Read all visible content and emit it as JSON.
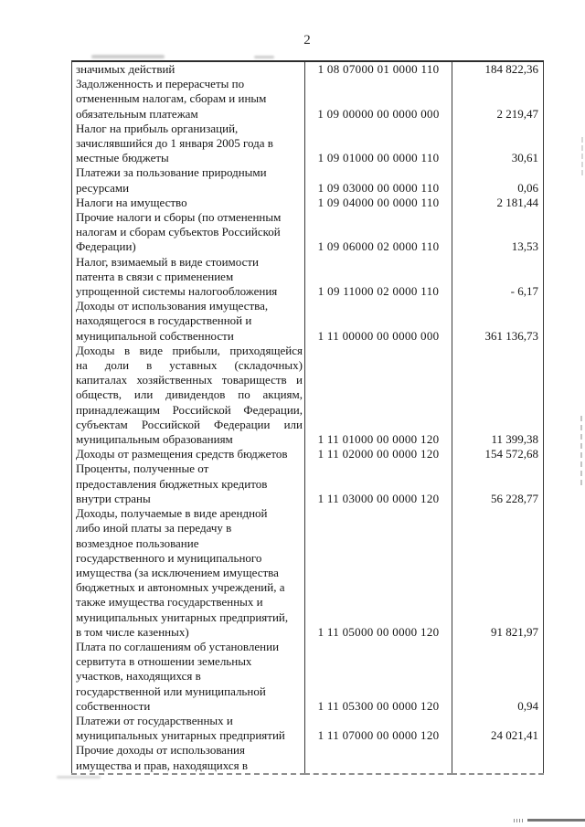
{
  "page": {
    "number": "2",
    "background_color": "#ffffff",
    "text_color": "#161616",
    "border_color": "#3a3a3a"
  },
  "table": {
    "columns": [
      "description",
      "classification_code",
      "amount"
    ],
    "rows": [
      {
        "description_lines": [
          "значимых действий"
        ],
        "code": "1 08 07000 01 0000 110",
        "amount": "184 822,36",
        "justified": false
      },
      {
        "description_lines": [
          "Задолженность и перерасчеты по",
          "отмененным налогам, сборам и иным",
          "обязательным платежам"
        ],
        "code": "1 09 00000 00 0000 000",
        "amount": "2 219,47",
        "justified": false
      },
      {
        "description_lines": [
          "Налог на прибыль организаций,",
          "зачислявшийся до 1 января 2005 года в",
          "местные бюджеты"
        ],
        "code": "1 09 01000 00 0000 110",
        "amount": "30,61",
        "justified": false
      },
      {
        "description_lines": [
          "Платежи за пользование природными",
          "ресурсами"
        ],
        "code": "1 09 03000 00 0000 110",
        "amount": "0,06",
        "justified": false
      },
      {
        "description_lines": [
          "Налоги на имущество"
        ],
        "code": "1 09 04000 00 0000 110",
        "amount": "2 181,44",
        "justified": false
      },
      {
        "description_lines": [
          "Прочие налоги и сборы (по отмененным",
          "налогам и сборам субъектов Российской",
          "Федерации)"
        ],
        "code": "1 09 06000 02 0000 110",
        "amount": "13,53",
        "justified": false
      },
      {
        "description_lines": [
          "Налог, взимаемый в виде стоимости",
          "патента в связи с применением",
          "упрощенной системы налогообложения"
        ],
        "code": "1 09 11000 02 0000 110",
        "amount": "- 6,17",
        "justified": false
      },
      {
        "description_lines": [
          "Доходы от использования имущества,",
          "находящегося в государственной и",
          "муниципальной собственности"
        ],
        "code": "1 11 00000 00 0000 000",
        "amount": "361 136,73",
        "justified": false
      },
      {
        "description_lines": [
          "Доходы в виде прибыли, приходящейся",
          "на доли в уставных (складочных)",
          "капиталах хозяйственных товариществ и",
          "обществ, или дивидендов по акциям,",
          "принадлежащим Российской Федерации,",
          "субъектам Российской Федерации или",
          "муниципальным образованиям"
        ],
        "code": "1 11 01000 00 0000 120",
        "amount": "11 399,38",
        "justified": true
      },
      {
        "description_lines": [
          "Доходы от размещения средств бюджетов"
        ],
        "code": "1 11 02000 00 0000 120",
        "amount": "154 572,68",
        "justified": false
      },
      {
        "description_lines": [
          "Проценты, полученные от",
          "предоставления бюджетных кредитов",
          "внутри страны"
        ],
        "code": "1 11 03000 00 0000 120",
        "amount": "56 228,77",
        "justified": false
      },
      {
        "description_lines": [
          "Доходы, получаемые в виде арендной",
          "либо иной платы за передачу в",
          "возмездное пользование",
          "государственного и муниципального",
          "имущества (за исключением имущества",
          "бюджетных и автономных учреждений, а",
          "также имущества государственных и",
          "муниципальных унитарных предприятий,",
          "в том числе казенных)"
        ],
        "code": "1 11 05000 00 0000 120",
        "amount": "91 821,97",
        "justified": false
      },
      {
        "description_lines": [
          "Плата по соглашениям об установлении",
          "сервитута в отношении земельных",
          "участков, находящихся в",
          "государственной или муниципальной",
          "собственности"
        ],
        "code": "1 11 05300 00 0000 120",
        "amount": "0,94",
        "justified": false
      },
      {
        "description_lines": [
          "Платежи от государственных и",
          "муниципальных унитарных предприятий"
        ],
        "code": "1 11 07000 00 0000 120",
        "amount": "24 021,41",
        "justified": false
      },
      {
        "description_lines": [
          "Прочие доходы от использования",
          "имущества и прав, находящихся в"
        ],
        "code": "",
        "amount": "",
        "justified": false
      }
    ]
  }
}
